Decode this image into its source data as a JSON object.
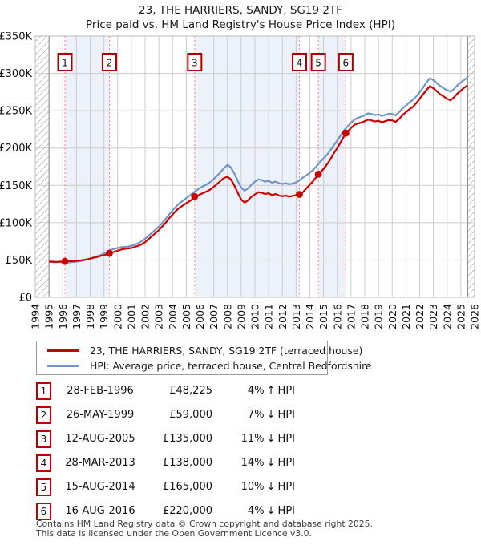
{
  "title": {
    "line1": "23, THE HARRIERS, SANDY, SG19 2TF",
    "line2": "Price paid vs. HM Land Registry's House Price Index (HPI)"
  },
  "colors": {
    "property": "#cc0000",
    "hpi": "#6f95c9",
    "sale_line": "#ff8080",
    "band": "#edf1fa",
    "grid": "#cccccc",
    "plot_border": "#bbbbbb",
    "data_edge": "#888888",
    "hatch": "#c4c4c4",
    "marker_border": "#aa0000",
    "dot": "#cc0000"
  },
  "chart_data": {
    "type": "line",
    "title": "Price paid vs. HM Land Registry's House Price Index (HPI)",
    "units": "GBP thousands",
    "xlim": [
      1994,
      2026
    ],
    "ylim": [
      0,
      350
    ],
    "x_ticks": [
      1994,
      1995,
      1996,
      1997,
      1998,
      1999,
      2000,
      2001,
      2002,
      2003,
      2004,
      2005,
      2006,
      2007,
      2008,
      2009,
      2010,
      2011,
      2012,
      2013,
      2014,
      2015,
      2016,
      2017,
      2018,
      2019,
      2020,
      2021,
      2022,
      2023,
      2024,
      2025,
      2026
    ],
    "y_ticks": [
      0,
      50,
      100,
      150,
      200,
      250,
      300,
      350
    ],
    "y_tick_labels": [
      "£0",
      "£50K",
      "£100K",
      "£150K",
      "£200K",
      "£250K",
      "£300K",
      "£350K"
    ],
    "grid": true,
    "legend_position": "below",
    "data_start": 1995.0,
    "data_end": 2025.5,
    "ownership_bands": [
      [
        1996.16,
        1999.4
      ],
      [
        2005.61,
        2013.24
      ],
      [
        2014.62,
        2016.62
      ]
    ],
    "series": [
      {
        "name": "HPI: Average price, terraced house, Central Bedfordshire",
        "color_key": "hpi",
        "x_start": 1995.0,
        "x_step": 0.25,
        "values": [
          47.5,
          47.2,
          47,
          47.2,
          46.8,
          46.5,
          46.8,
          47.2,
          47.8,
          48.5,
          49.5,
          50.5,
          52,
          53.5,
          55,
          56.5,
          58.5,
          61,
          63.5,
          65,
          66,
          67,
          67.5,
          68,
          69,
          70.5,
          72.5,
          75,
          78.5,
          82.5,
          86.5,
          90.5,
          94.5,
          99.5,
          105,
          111,
          116.5,
          121.5,
          126,
          129.5,
          133,
          136.5,
          140,
          143.5,
          146.5,
          149,
          151.5,
          154.5,
          158.5,
          163,
          168,
          173,
          177.5,
          174,
          166,
          156,
          147,
          143,
          146,
          151,
          155,
          158,
          157,
          155,
          156,
          153.5,
          155,
          153,
          152,
          153,
          151.5,
          152.5,
          154,
          157,
          160.5,
          163.5,
          167,
          171,
          176,
          181.5,
          186,
          191,
          197,
          204,
          210,
          217,
          224,
          229,
          234,
          238,
          240.5,
          242,
          244,
          246.5,
          245.5,
          244,
          245,
          243,
          244.5,
          246,
          245.5,
          243.5,
          248,
          253,
          257,
          261,
          264.5,
          269,
          275,
          281,
          288,
          293.5,
          291,
          287,
          283,
          280,
          277.5,
          275.5,
          279,
          284,
          288,
          291.5,
          294.5
        ]
      },
      {
        "name": "23, THE HARRIERS, SANDY, SG19 2TF (terraced house)",
        "color_key": "property",
        "x_start": 1995.0,
        "x_step": 0.25,
        "values": [
          48,
          47.8,
          47.5,
          47.8,
          48,
          48.3,
          48.6,
          48.4,
          48.8,
          49.2,
          50,
          50.8,
          51.8,
          53,
          54,
          55.5,
          56.5,
          58,
          59.5,
          61,
          62.5,
          64,
          65,
          65.5,
          66,
          67.5,
          69,
          71,
          74,
          78,
          82,
          86,
          90,
          95,
          100,
          106,
          111,
          116,
          120,
          123,
          126,
          129,
          132,
          135.5,
          138,
          140,
          142,
          144.5,
          148,
          152,
          156,
          160,
          161.5,
          158,
          150,
          140,
          131,
          127,
          130,
          135,
          138,
          141,
          140,
          138.5,
          139.5,
          137,
          138.5,
          136.5,
          135.5,
          136.5,
          135,
          136,
          137,
          138,
          141,
          146,
          151,
          156,
          162,
          167,
          172,
          178,
          185,
          193,
          200,
          208,
          216,
          222,
          227,
          231,
          233,
          234,
          236,
          238,
          237,
          235.5,
          236.5,
          234.5,
          236,
          237.5,
          237,
          235,
          239,
          244,
          248,
          252,
          255,
          260,
          266,
          272,
          278,
          283,
          280,
          276,
          272,
          269,
          266,
          264,
          268,
          273,
          277,
          281,
          284
        ]
      }
    ],
    "sales": [
      {
        "label": "1",
        "year": 1996.16,
        "price_k": 48.225
      },
      {
        "label": "2",
        "year": 1999.4,
        "price_k": 59
      },
      {
        "label": "3",
        "year": 2005.61,
        "price_k": 135
      },
      {
        "label": "4",
        "year": 2013.24,
        "price_k": 138
      },
      {
        "label": "5",
        "year": 2014.62,
        "price_k": 165
      },
      {
        "label": "6",
        "year": 2016.62,
        "price_k": 220
      }
    ]
  },
  "legend": {
    "items": [
      {
        "label": "23, THE HARRIERS, SANDY, SG19 2TF (terraced house)",
        "color_key": "property"
      },
      {
        "label": "HPI: Average price, terraced house, Central Bedfordshire",
        "color_key": "hpi"
      }
    ]
  },
  "table": {
    "rows": [
      {
        "num": "1",
        "date": "28-FEB-1996",
        "price": "£48,225",
        "pct": "4%",
        "arrow": "↑",
        "ref": "HPI"
      },
      {
        "num": "2",
        "date": "26-MAY-1999",
        "price": "£59,000",
        "pct": "7%",
        "arrow": "↓",
        "ref": "HPI"
      },
      {
        "num": "3",
        "date": "12-AUG-2005",
        "price": "£135,000",
        "pct": "11%",
        "arrow": "↓",
        "ref": "HPI"
      },
      {
        "num": "4",
        "date": "28-MAR-2013",
        "price": "£138,000",
        "pct": "14%",
        "arrow": "↓",
        "ref": "HPI"
      },
      {
        "num": "5",
        "date": "15-AUG-2014",
        "price": "£165,000",
        "pct": "10%",
        "arrow": "↓",
        "ref": "HPI"
      },
      {
        "num": "6",
        "date": "16-AUG-2016",
        "price": "£220,000",
        "pct": "4%",
        "arrow": "↓",
        "ref": "HPI"
      }
    ]
  },
  "footer": {
    "line1": "Contains HM Land Registry data © Crown copyright and database right 2025.",
    "line2": "This data is licensed under the Open Government Licence v3.0."
  }
}
